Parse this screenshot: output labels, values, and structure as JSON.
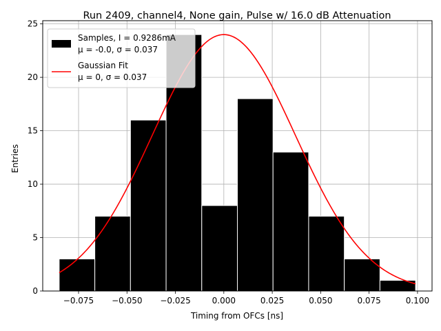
{
  "chart_data": {
    "type": "bar",
    "title": "Run 2409, channel4, None gain, Pulse w/ 16.0 dB Attenuation",
    "xlabel": "Timing from OFCs [ns]",
    "ylabel": "Entries",
    "xlim": [
      -0.0935,
      0.1075
    ],
    "ylim": [
      0,
      25.3
    ],
    "xticks": [
      -0.075,
      -0.05,
      -0.025,
      0.0,
      0.025,
      0.05,
      0.075,
      0.1
    ],
    "xtick_labels": [
      "−0.075",
      "−0.050",
      "−0.025",
      "0.000",
      "0.025",
      "0.050",
      "0.075",
      "0.100"
    ],
    "yticks": [
      0,
      5,
      10,
      15,
      20,
      25
    ],
    "ytick_labels": [
      "0",
      "5",
      "10",
      "15",
      "20",
      "25"
    ],
    "grid": true,
    "legend_position": "top-left",
    "histogram": {
      "bin_edges": [
        -0.085,
        -0.0666,
        -0.0482,
        -0.0298,
        -0.0114,
        0.007,
        0.0254,
        0.0438,
        0.0622,
        0.0806,
        0.099
      ],
      "counts": [
        3,
        7,
        16,
        24,
        8,
        18,
        13,
        7,
        3,
        1
      ],
      "color": "#000000",
      "edgecolor": "#ffffff",
      "legend_line1": "Samples, I = 0.9286mA",
      "legend_line2": "μ = -0.0, σ = 0.037"
    },
    "fit": {
      "type": "gaussian",
      "amplitude": 24,
      "mu": 0.0,
      "sigma": 0.037,
      "x_range": [
        -0.085,
        0.099
      ],
      "color": "#ff0000",
      "legend_line1": "Gaussian Fit",
      "legend_line2": "μ = 0, σ = 0.037"
    }
  }
}
